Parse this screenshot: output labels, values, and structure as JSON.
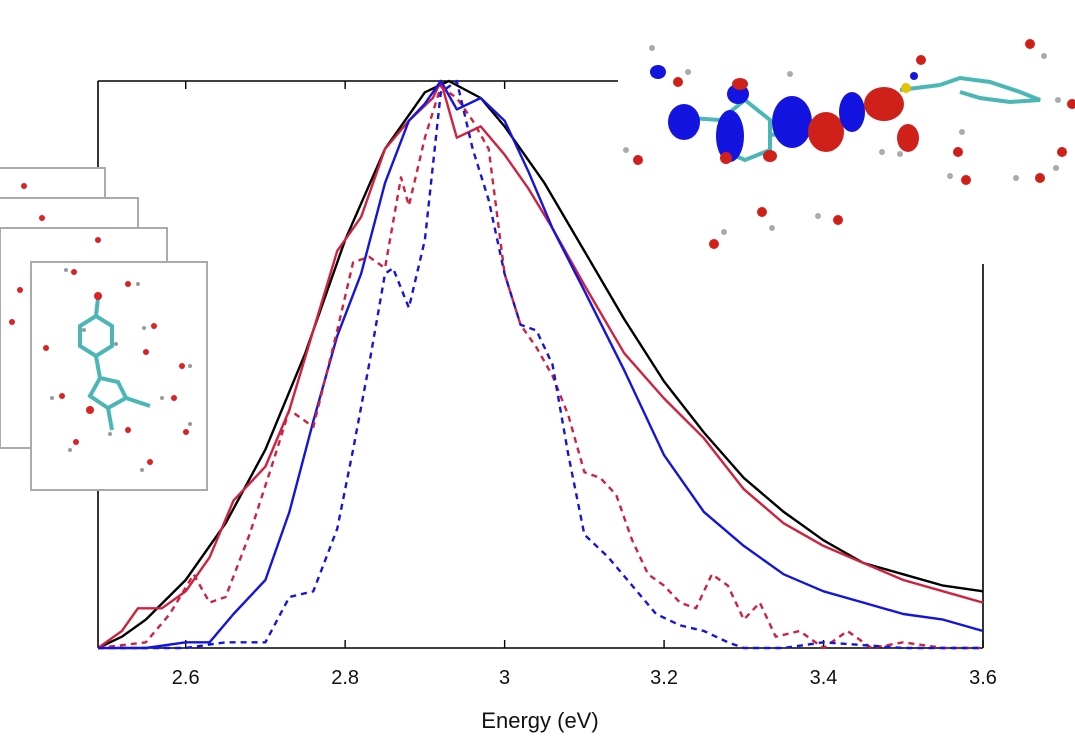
{
  "chart_data": {
    "type": "line",
    "xlabel": "Energy (eV)",
    "ylabel": "",
    "xlim": [
      2.49,
      3.6
    ],
    "ylim": [
      0,
      1.0
    ],
    "x_ticks": [
      "2.6",
      "2.8",
      "3",
      "3.2",
      "3.4",
      "3.6"
    ],
    "grid": false,
    "legend": "none",
    "series": [
      {
        "color": "#000000",
        "style": "solid",
        "points": [
          [
            2.49,
            0.0
          ],
          [
            2.52,
            0.02
          ],
          [
            2.55,
            0.05
          ],
          [
            2.6,
            0.12
          ],
          [
            2.65,
            0.22
          ],
          [
            2.7,
            0.35
          ],
          [
            2.75,
            0.52
          ],
          [
            2.8,
            0.72
          ],
          [
            2.85,
            0.88
          ],
          [
            2.9,
            0.98
          ],
          [
            2.93,
            1.0
          ],
          [
            2.97,
            0.97
          ],
          [
            3.0,
            0.92
          ],
          [
            3.05,
            0.82
          ],
          [
            3.1,
            0.7
          ],
          [
            3.15,
            0.58
          ],
          [
            3.2,
            0.47
          ],
          [
            3.25,
            0.38
          ],
          [
            3.3,
            0.3
          ],
          [
            3.35,
            0.24
          ],
          [
            3.4,
            0.19
          ],
          [
            3.45,
            0.15
          ],
          [
            3.5,
            0.13
          ],
          [
            3.55,
            0.11
          ],
          [
            3.6,
            0.1
          ]
        ]
      },
      {
        "color": "#d0213f",
        "style": "solid",
        "points": [
          [
            2.49,
            0.0
          ],
          [
            2.52,
            0.03
          ],
          [
            2.54,
            0.07
          ],
          [
            2.57,
            0.07
          ],
          [
            2.6,
            0.1
          ],
          [
            2.63,
            0.16
          ],
          [
            2.66,
            0.26
          ],
          [
            2.7,
            0.32
          ],
          [
            2.73,
            0.42
          ],
          [
            2.76,
            0.56
          ],
          [
            2.79,
            0.7
          ],
          [
            2.82,
            0.76
          ],
          [
            2.85,
            0.88
          ],
          [
            2.88,
            0.93
          ],
          [
            2.91,
            0.97
          ],
          [
            2.92,
            1.0
          ],
          [
            2.94,
            0.9
          ],
          [
            2.97,
            0.92
          ],
          [
            3.0,
            0.87
          ],
          [
            3.03,
            0.81
          ],
          [
            3.06,
            0.74
          ],
          [
            3.1,
            0.64
          ],
          [
            3.15,
            0.52
          ],
          [
            3.2,
            0.44
          ],
          [
            3.25,
            0.37
          ],
          [
            3.3,
            0.28
          ],
          [
            3.35,
            0.22
          ],
          [
            3.4,
            0.18
          ],
          [
            3.45,
            0.15
          ],
          [
            3.5,
            0.12
          ],
          [
            3.55,
            0.1
          ],
          [
            3.6,
            0.08
          ]
        ]
      },
      {
        "color": "#1414e0",
        "style": "solid",
        "points": [
          [
            2.49,
            0.0
          ],
          [
            2.55,
            0.0
          ],
          [
            2.6,
            0.01
          ],
          [
            2.63,
            0.01
          ],
          [
            2.66,
            0.06
          ],
          [
            2.7,
            0.12
          ],
          [
            2.73,
            0.24
          ],
          [
            2.76,
            0.4
          ],
          [
            2.79,
            0.55
          ],
          [
            2.82,
            0.66
          ],
          [
            2.85,
            0.82
          ],
          [
            2.88,
            0.93
          ],
          [
            2.9,
            0.96
          ],
          [
            2.92,
            1.0
          ],
          [
            2.94,
            0.95
          ],
          [
            2.97,
            0.97
          ],
          [
            3.0,
            0.93
          ],
          [
            3.03,
            0.84
          ],
          [
            3.06,
            0.74
          ],
          [
            3.1,
            0.63
          ],
          [
            3.15,
            0.49
          ],
          [
            3.2,
            0.34
          ],
          [
            3.25,
            0.24
          ],
          [
            3.3,
            0.18
          ],
          [
            3.35,
            0.13
          ],
          [
            3.4,
            0.1
          ],
          [
            3.45,
            0.08
          ],
          [
            3.5,
            0.06
          ],
          [
            3.55,
            0.05
          ],
          [
            3.6,
            0.03
          ]
        ]
      },
      {
        "color": "#d0213f",
        "style": "dashed",
        "points": [
          [
            2.49,
            0.0
          ],
          [
            2.55,
            0.01
          ],
          [
            2.58,
            0.06
          ],
          [
            2.61,
            0.13
          ],
          [
            2.63,
            0.08
          ],
          [
            2.65,
            0.09
          ],
          [
            2.68,
            0.2
          ],
          [
            2.71,
            0.33
          ],
          [
            2.73,
            0.42
          ],
          [
            2.76,
            0.39
          ],
          [
            2.79,
            0.56
          ],
          [
            2.81,
            0.68
          ],
          [
            2.83,
            0.69
          ],
          [
            2.85,
            0.67
          ],
          [
            2.87,
            0.83
          ],
          [
            2.88,
            0.78
          ],
          [
            2.9,
            0.9
          ],
          [
            2.92,
            0.99
          ],
          [
            2.94,
            0.97
          ],
          [
            2.96,
            0.93
          ],
          [
            2.98,
            0.88
          ],
          [
            3.0,
            0.66
          ],
          [
            3.02,
            0.57
          ],
          [
            3.04,
            0.53
          ],
          [
            3.06,
            0.48
          ],
          [
            3.08,
            0.41
          ],
          [
            3.1,
            0.31
          ],
          [
            3.12,
            0.3
          ],
          [
            3.14,
            0.27
          ],
          [
            3.16,
            0.19
          ],
          [
            3.18,
            0.13
          ],
          [
            3.2,
            0.11
          ],
          [
            3.22,
            0.08
          ],
          [
            3.24,
            0.07
          ],
          [
            3.26,
            0.13
          ],
          [
            3.28,
            0.11
          ],
          [
            3.3,
            0.05
          ],
          [
            3.32,
            0.08
          ],
          [
            3.34,
            0.02
          ],
          [
            3.37,
            0.03
          ],
          [
            3.4,
            0.0
          ],
          [
            3.43,
            0.03
          ],
          [
            3.46,
            0.0
          ],
          [
            3.5,
            0.01
          ],
          [
            3.55,
            0.0
          ],
          [
            3.6,
            0.0
          ]
        ]
      },
      {
        "color": "#1414e0",
        "style": "dashed",
        "points": [
          [
            2.49,
            0.0
          ],
          [
            2.6,
            0.0
          ],
          [
            2.65,
            0.01
          ],
          [
            2.7,
            0.01
          ],
          [
            2.73,
            0.09
          ],
          [
            2.76,
            0.1
          ],
          [
            2.79,
            0.21
          ],
          [
            2.81,
            0.35
          ],
          [
            2.83,
            0.5
          ],
          [
            2.85,
            0.66
          ],
          [
            2.86,
            0.67
          ],
          [
            2.88,
            0.6
          ],
          [
            2.9,
            0.72
          ],
          [
            2.92,
            0.98
          ],
          [
            2.94,
            1.0
          ],
          [
            2.96,
            0.88
          ],
          [
            2.98,
            0.79
          ],
          [
            3.0,
            0.66
          ],
          [
            3.02,
            0.57
          ],
          [
            3.04,
            0.56
          ],
          [
            3.06,
            0.5
          ],
          [
            3.08,
            0.34
          ],
          [
            3.1,
            0.2
          ],
          [
            3.13,
            0.16
          ],
          [
            3.16,
            0.11
          ],
          [
            3.19,
            0.06
          ],
          [
            3.22,
            0.04
          ],
          [
            3.25,
            0.03
          ],
          [
            3.28,
            0.01
          ],
          [
            3.3,
            0.0
          ],
          [
            3.35,
            0.0
          ],
          [
            3.4,
            0.01
          ],
          [
            3.5,
            0.0
          ],
          [
            3.6,
            0.0
          ]
        ]
      }
    ]
  }
}
